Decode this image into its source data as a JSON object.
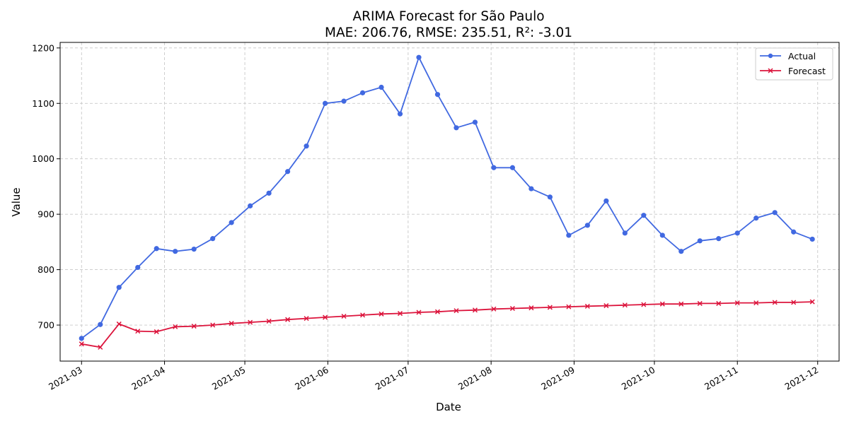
{
  "chart_data": {
    "type": "line",
    "title": "ARIMA Forecast for São Paulo",
    "subtitle": "MAE: 206.76, RMSE: 235.51, R²: -3.01",
    "xlabel": "Date",
    "ylabel": "Value",
    "xlim": [
      "2021-02-21",
      "2021-12-09"
    ],
    "ylim": [
      635,
      1210
    ],
    "x_ticks": [
      "2021-03-01",
      "2021-04-01",
      "2021-05-01",
      "2021-06-01",
      "2021-07-01",
      "2021-08-01",
      "2021-09-01",
      "2021-10-01",
      "2021-11-01",
      "2021-12-01"
    ],
    "x_tick_labels": [
      "2021-03",
      "2021-04",
      "2021-05",
      "2021-06",
      "2021-07",
      "2021-08",
      "2021-09",
      "2021-10",
      "2021-11",
      "2021-12"
    ],
    "y_ticks": [
      700,
      800,
      900,
      1000,
      1100,
      1200
    ],
    "y_tick_labels": [
      "700",
      "800",
      "900",
      "1000",
      "1100",
      "1200"
    ],
    "grid": true,
    "legend_position": "top-right",
    "x": [
      "2021-03-01",
      "2021-03-08",
      "2021-03-15",
      "2021-03-22",
      "2021-03-29",
      "2021-04-05",
      "2021-04-12",
      "2021-04-19",
      "2021-04-26",
      "2021-05-03",
      "2021-05-10",
      "2021-05-17",
      "2021-05-24",
      "2021-05-31",
      "2021-06-07",
      "2021-06-14",
      "2021-06-21",
      "2021-06-28",
      "2021-07-05",
      "2021-07-12",
      "2021-07-19",
      "2021-07-26",
      "2021-08-02",
      "2021-08-09",
      "2021-08-16",
      "2021-08-23",
      "2021-08-30",
      "2021-09-06",
      "2021-09-13",
      "2021-09-20",
      "2021-09-27",
      "2021-10-04",
      "2021-10-11",
      "2021-10-18",
      "2021-10-25",
      "2021-11-01",
      "2021-11-08",
      "2021-11-15",
      "2021-11-22",
      "2021-11-29"
    ],
    "series": [
      {
        "name": "Actual",
        "color": "#4169e1",
        "marker": "circle",
        "values": [
          676,
          701,
          768,
          804,
          838,
          833,
          837,
          856,
          885,
          915,
          938,
          977,
          1023,
          1100,
          1104,
          1119,
          1129,
          1081,
          1183,
          1116,
          1056,
          1066,
          984,
          984,
          946,
          931,
          862,
          880,
          924,
          866,
          898,
          862,
          833,
          852,
          856,
          866,
          893,
          903,
          868,
          855
        ]
      },
      {
        "name": "Forecast",
        "color": "#dc143c",
        "marker": "x",
        "values": [
          666,
          660,
          702,
          689,
          688,
          697,
          698,
          700,
          703,
          705,
          707,
          710,
          712,
          714,
          716,
          718,
          720,
          721,
          723,
          724,
          726,
          727,
          729,
          730,
          731,
          732,
          733,
          734,
          735,
          736,
          737,
          738,
          738,
          739,
          739,
          740,
          740,
          741,
          741,
          742
        ]
      }
    ]
  }
}
